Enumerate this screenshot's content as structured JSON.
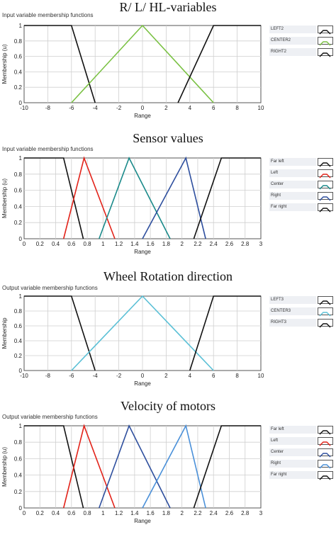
{
  "sections": [
    {
      "title": "R/ L/ HL-variables",
      "panel_label": "Input variable membership functions"
    },
    {
      "title": "Sensor values",
      "panel_label": "Input variable membership functions"
    },
    {
      "title": "Wheel Rotation direction",
      "panel_label": "Output variable membership functions"
    },
    {
      "title": "Velocity of motors",
      "panel_label": "Output variable membership functions"
    }
  ],
  "chart_data": [
    {
      "type": "line",
      "xlabel": "Range",
      "ylabel": "Membership (u)",
      "xlim": [
        -10,
        10
      ],
      "ylim": [
        0,
        1
      ],
      "xticks": [
        "-10",
        "-8",
        "-6",
        "-4",
        "-2",
        "0",
        "2",
        "4",
        "6",
        "8",
        "10"
      ],
      "yticks": [
        "0",
        "0.2",
        "0.4",
        "0.6",
        "0.8",
        "1"
      ],
      "grid": true,
      "legend_position": "right",
      "series": [
        {
          "name": "LEFT2",
          "color": "#111111",
          "x": [
            -10,
            -6,
            -4
          ],
          "y": [
            1,
            1,
            0
          ]
        },
        {
          "name": "CENTER2",
          "color": "#7ac143",
          "x": [
            -6,
            0,
            6
          ],
          "y": [
            0,
            1,
            0
          ]
        },
        {
          "name": "RIGHT2",
          "color": "#111111",
          "x": [
            3,
            6,
            10
          ],
          "y": [
            0,
            1,
            1
          ]
        }
      ]
    },
    {
      "type": "line",
      "xlabel": "Range",
      "ylabel": "Membership (u)",
      "xlim": [
        0,
        3
      ],
      "ylim": [
        0,
        1
      ],
      "xticks": [
        "0",
        "0.2",
        "0.4",
        "0.6",
        "0.8",
        "1",
        "1.2",
        "1.4",
        "1.6",
        "1.8",
        "2",
        "2.2",
        "2.4",
        "2.6",
        "2.8",
        "3"
      ],
      "yticks": [
        "0",
        "0.2",
        "0.4",
        "0.6",
        "0.8",
        "1"
      ],
      "grid": true,
      "legend_position": "right",
      "series": [
        {
          "name": "Far left",
          "color": "#111111",
          "x": [
            0,
            0.5,
            0.75
          ],
          "y": [
            1,
            1,
            0
          ]
        },
        {
          "name": "Left",
          "color": "#e2231a",
          "x": [
            0.5,
            0.76,
            1.15
          ],
          "y": [
            0,
            1,
            0
          ]
        },
        {
          "name": "Center",
          "color": "#1a8a8a",
          "x": [
            0.95,
            1.33,
            1.85
          ],
          "y": [
            0,
            1,
            0
          ]
        },
        {
          "name": "Right",
          "color": "#2e4f9e",
          "x": [
            1.5,
            2.05,
            2.3
          ],
          "y": [
            0,
            1,
            0
          ]
        },
        {
          "name": "Far right",
          "color": "#111111",
          "x": [
            2.15,
            2.5,
            3
          ],
          "y": [
            0,
            1,
            1
          ]
        }
      ]
    },
    {
      "type": "line",
      "xlabel": "Range",
      "ylabel": "Membership",
      "xlim": [
        -10,
        10
      ],
      "ylim": [
        0,
        1
      ],
      "xticks": [
        "-10",
        "-8",
        "-6",
        "-4",
        "-2",
        "0",
        "2",
        "4",
        "6",
        "8",
        "10"
      ],
      "yticks": [
        "0",
        "0.2",
        "0.4",
        "0.6",
        "0.8",
        "1"
      ],
      "grid": true,
      "legend_position": "right",
      "series": [
        {
          "name": "LEFT3",
          "color": "#111111",
          "x": [
            -10,
            -6,
            -4
          ],
          "y": [
            1,
            1,
            0
          ]
        },
        {
          "name": "CENTER3",
          "color": "#5bc0d6",
          "x": [
            -6,
            0,
            6
          ],
          "y": [
            0,
            1,
            0
          ]
        },
        {
          "name": "RIGHT3",
          "color": "#111111",
          "x": [
            4,
            6,
            10
          ],
          "y": [
            0,
            1,
            1
          ]
        }
      ]
    },
    {
      "type": "line",
      "xlabel": "Range",
      "ylabel": "Membership (u)",
      "xlim": [
        0,
        3
      ],
      "ylim": [
        0,
        1
      ],
      "xticks": [
        "0",
        "0.2",
        "0.4",
        "0.6",
        "0.8",
        "1",
        "1.2",
        "1.4",
        "1.6",
        "1.8",
        "2",
        "2.2",
        "2.4",
        "2.6",
        "2.8",
        "3"
      ],
      "yticks": [
        "0",
        "0.2",
        "0.4",
        "0.6",
        "0.8",
        "1"
      ],
      "grid": true,
      "legend_position": "right",
      "series": [
        {
          "name": "Far left",
          "color": "#111111",
          "x": [
            0,
            0.5,
            0.75
          ],
          "y": [
            1,
            1,
            0
          ]
        },
        {
          "name": "Left",
          "color": "#e2231a",
          "x": [
            0.5,
            0.76,
            1.15
          ],
          "y": [
            0,
            1,
            0
          ]
        },
        {
          "name": "Center",
          "color": "#2e4f9e",
          "x": [
            0.95,
            1.33,
            1.85
          ],
          "y": [
            0,
            1,
            0
          ]
        },
        {
          "name": "Right",
          "color": "#4a90d9",
          "x": [
            1.5,
            2.05,
            2.3
          ],
          "y": [
            0,
            1,
            0
          ]
        },
        {
          "name": "Far right",
          "color": "#111111",
          "x": [
            2.15,
            2.5,
            3
          ],
          "y": [
            0,
            1,
            1
          ]
        }
      ]
    }
  ]
}
